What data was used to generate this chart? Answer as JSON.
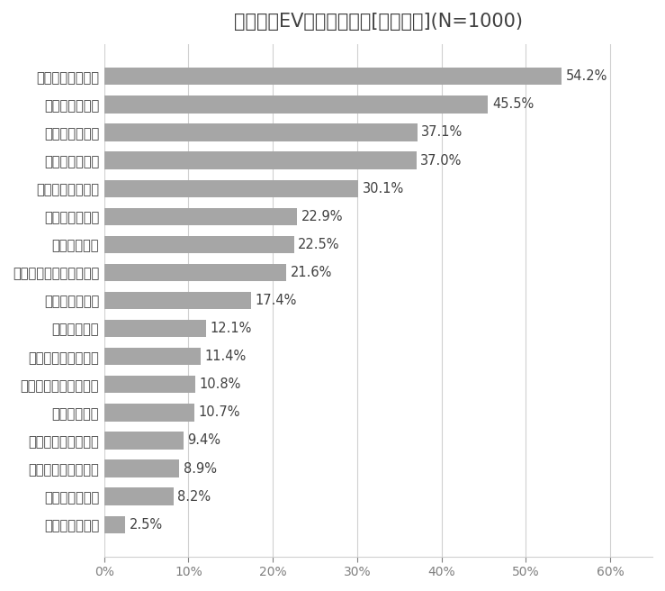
{
  "title": "中国人のEVに対する不安[複数回答](N=1000)",
  "categories": [
    "充電場所が少ない",
    "航続距離が短い",
    "技術的に不十分",
    "充電時間が長い",
    "電池の事故や劣化",
    "走行時の安全性",
    "故障時の対応",
    "加速性能が十分ではない",
    "車体価格が高い",
    "車種が不十分",
    "静過ぎるための事故",
    "メーカーに対する不信",
    "電気代が高い",
    "車内スペースの狭さ",
    "乗り心地がよくない",
    "外観やスタイル",
    "不安は全くない"
  ],
  "values": [
    54.2,
    45.5,
    37.1,
    37.0,
    30.1,
    22.9,
    22.5,
    21.6,
    17.4,
    12.1,
    11.4,
    10.8,
    10.7,
    9.4,
    8.9,
    8.2,
    2.5
  ],
  "bar_color": "#a6a6a6",
  "background_color": "#ffffff",
  "title_fontsize": 15,
  "label_fontsize": 10.5,
  "value_fontsize": 10.5,
  "tick_fontsize": 10,
  "xlim": [
    0,
    65
  ],
  "xticks": [
    0,
    10,
    20,
    30,
    40,
    50,
    60
  ],
  "xticklabels": [
    "0%",
    "10%",
    "20%",
    "30%",
    "40%",
    "50%",
    "60%"
  ]
}
